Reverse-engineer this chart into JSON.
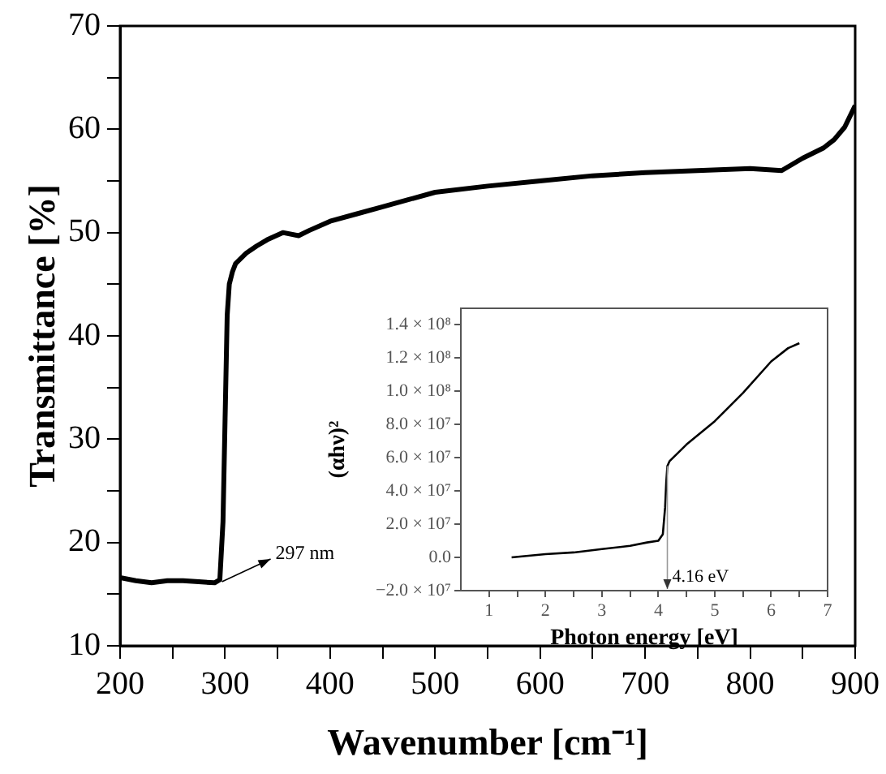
{
  "chart_data": [
    {
      "type": "line",
      "xlabel": "Wavenumber [cm⁻¹]",
      "ylabel": "Transmittance [%]",
      "xlim": [
        200,
        900
      ],
      "ylim": [
        10,
        70
      ],
      "xticks": [
        200,
        {
          "value": 250,
          "label": null
        },
        300,
        {
          "value": 350,
          "label": null
        },
        400,
        {
          "value": 450,
          "label": null
        },
        500,
        {
          "value": 550,
          "label": null
        },
        600,
        {
          "value": 650,
          "label": null
        },
        700,
        {
          "value": 750,
          "label": null
        },
        800,
        {
          "value": 850,
          "label": null
        },
        900
      ],
      "yticks": [
        10,
        {
          "value": 15,
          "label": null
        },
        20,
        {
          "value": 25,
          "label": null
        },
        30,
        {
          "value": 35,
          "label": null
        },
        40,
        {
          "value": 45,
          "label": null
        },
        50,
        {
          "value": 55,
          "label": null
        },
        60,
        {
          "value": 65,
          "label": null
        },
        70
      ],
      "marker": "none",
      "line_style": "solid",
      "series": [
        {
          "color": "#000000",
          "x": [
            200,
            215,
            230,
            245,
            260,
            275,
            290,
            295,
            298,
            300,
            302,
            304,
            307,
            310,
            320,
            330,
            340,
            355,
            370,
            380,
            400,
            425,
            450,
            475,
            500,
            550,
            600,
            650,
            700,
            750,
            800,
            830,
            850,
            870,
            880,
            890,
            900
          ],
          "values": [
            16.6,
            16.3,
            16.1,
            16.3,
            16.3,
            16.2,
            16.1,
            16.4,
            22,
            32,
            42,
            45,
            46.2,
            47,
            48,
            48.7,
            49.3,
            50,
            49.7,
            50.2,
            51.1,
            51.8,
            52.5,
            53.2,
            53.9,
            54.5,
            55,
            55.5,
            55.8,
            56,
            56.2,
            56,
            57.2,
            58.2,
            59,
            60.2,
            62.3
          ]
        }
      ],
      "annotations": [
        {
          "text": "297 nm",
          "x": 297,
          "y": 16.2
        }
      ]
    },
    {
      "type": "line",
      "xlabel": "Photon energy [eV]",
      "ylabel": "(αhν)²",
      "xlim": [
        0.5,
        7
      ],
      "ylim": [
        -20000000,
        150000000
      ],
      "xticks": [
        1,
        {
          "value": 1.5,
          "label": null
        },
        2,
        {
          "value": 2.5,
          "label": null
        },
        3,
        {
          "value": 3.5,
          "label": null
        },
        4,
        {
          "value": 4.5,
          "label": null
        },
        5,
        {
          "value": 5.5,
          "label": null
        },
        6,
        {
          "value": 6.5,
          "label": null
        },
        7
      ],
      "yticks": [
        {
          "value": -20000000,
          "label": "−2.0 × 10⁷"
        },
        {
          "value": 0,
          "label": "0.0"
        },
        {
          "value": 20000000,
          "label": "2.0 × 10⁷"
        },
        {
          "value": 40000000,
          "label": "4.0 × 10⁷"
        },
        {
          "value": 60000000,
          "label": "6.0 × 10⁷"
        },
        {
          "value": 80000000,
          "label": "8.0 × 10⁷"
        },
        {
          "value": 100000000,
          "label": "1.0 × 10⁸"
        },
        {
          "value": 120000000,
          "label": "1.2 × 10⁸"
        },
        {
          "value": 140000000,
          "label": "1.4 × 10⁸"
        }
      ],
      "marker": "none",
      "line_style": "solid",
      "series": [
        {
          "color": "#000000",
          "x": [
            1.4,
            2,
            2.5,
            3,
            3.5,
            3.8,
            4.0,
            4.08,
            4.12,
            4.14,
            4.16,
            4.2,
            4.5,
            5,
            5.5,
            6,
            6.3,
            6.5
          ],
          "values": [
            0,
            2000000,
            3000000,
            5000000,
            7000000,
            9000000,
            10000000,
            14000000,
            30000000,
            45000000,
            55000000,
            58000000,
            68000000,
            82000000,
            99000000,
            118000000,
            126000000,
            129000000
          ]
        }
      ],
      "annotations": [
        {
          "text": "4.16 eV",
          "x": 4.16,
          "y": 55000000
        }
      ]
    }
  ]
}
